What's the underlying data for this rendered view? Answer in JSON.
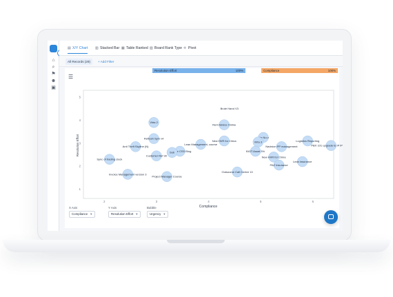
{
  "tabs": [
    {
      "label": "X/Y Chart",
      "icon": "chart-icon",
      "active": true
    },
    {
      "label": "Stacked Bar",
      "icon": "stacked-bar-icon",
      "active": false
    },
    {
      "label": "Table Ranked",
      "icon": "table-icon",
      "active": false
    },
    {
      "label": "Board Rank Type",
      "icon": "board-icon",
      "active": false
    },
    {
      "label": "Pivot",
      "icon": "pivot-icon",
      "active": false
    }
  ],
  "filters": {
    "chip": "All Records (29)",
    "add": "+ Add Filter"
  },
  "bars": [
    {
      "label": "Resolution Effort",
      "value": "100%",
      "color": "#79b2ea"
    },
    {
      "label": "Compliance",
      "value": "100%",
      "color": "#f4a766"
    }
  ],
  "controls": [
    {
      "label": "X Axis",
      "value": "Compliance"
    },
    {
      "label": "Y Axis",
      "value": "Resolution Effort"
    },
    {
      "label": "Bubble",
      "value": "Urgency"
    }
  ],
  "chart_data": {
    "type": "scatter",
    "xlabel": "Compliance",
    "ylabel": "Resolution Effort",
    "xlim": [
      1.6,
      6.4
    ],
    "ylim": [
      0.6,
      5.3
    ],
    "xticks": [
      2,
      3,
      4,
      5,
      6
    ],
    "yticks": [
      1,
      2,
      3,
      4,
      5
    ],
    "grid": false,
    "points": [
      {
        "label": "Brute Hand V3",
        "x": 4.4,
        "y": 4.5,
        "r": 0
      },
      {
        "label": "Virta 2",
        "x": 2.95,
        "y": 3.9,
        "r": 1
      },
      {
        "label": "Rent Advice Online",
        "x": 4.3,
        "y": 3.8,
        "r": 1
      },
      {
        "label": "Refresh Sym v4",
        "x": 2.95,
        "y": 3.2,
        "r": 1
      },
      {
        "label": "New HVR for China",
        "x": 4.3,
        "y": 3.1,
        "r": 1
      },
      {
        "label": "Lite Nu v",
        "x": 5.05,
        "y": 3.25,
        "r": 1
      },
      {
        "label": "Virta 3",
        "x": 4.95,
        "y": 3.05,
        "r": 1
      },
      {
        "label": "Logistics Reporting",
        "x": 5.9,
        "y": 3.1,
        "r": 1
      },
      {
        "label": "PBX 101 upgrade to IP iPhone 5",
        "x": 6.35,
        "y": 2.9,
        "r": 1
      },
      {
        "label": "Anti Theft Skyline (N)",
        "x": 2.6,
        "y": 2.85,
        "r": 1
      },
      {
        "label": "Lean Management, course",
        "x": 3.85,
        "y": 2.95,
        "r": 1
      },
      {
        "label": "Navision PP management",
        "x": 5.4,
        "y": 2.85,
        "r": 1
      },
      {
        "label": "BIOT Asset 3%",
        "x": 4.9,
        "y": 2.65,
        "r": 1
      },
      {
        "label": "Website CSS Blog",
        "x": 3.45,
        "y": 2.65,
        "r": 1
      },
      {
        "label": "Customer Ref 30",
        "x": 3.0,
        "y": 2.45,
        "r": 1
      },
      {
        "label": "Sub",
        "x": 3.3,
        "y": 2.6,
        "r": 1
      },
      {
        "label": "New HVR for China",
        "x": 5.25,
        "y": 2.4,
        "r": 1
      },
      {
        "label": "Sync of trading clock",
        "x": 2.1,
        "y": 2.3,
        "r": 1
      },
      {
        "label": "Lean insurance",
        "x": 5.8,
        "y": 2.2,
        "r": 1
      },
      {
        "label": "PAZ Insurance",
        "x": 5.35,
        "y": 2.05,
        "r": 1
      },
      {
        "label": "Invoice Management version 3",
        "x": 2.45,
        "y": 1.65,
        "r": 1
      },
      {
        "label": "Project Manager Course",
        "x": 3.2,
        "y": 1.55,
        "r": 1
      },
      {
        "label": "Outsource Call Centre 13",
        "x": 4.55,
        "y": 1.75,
        "r": 1
      }
    ]
  }
}
